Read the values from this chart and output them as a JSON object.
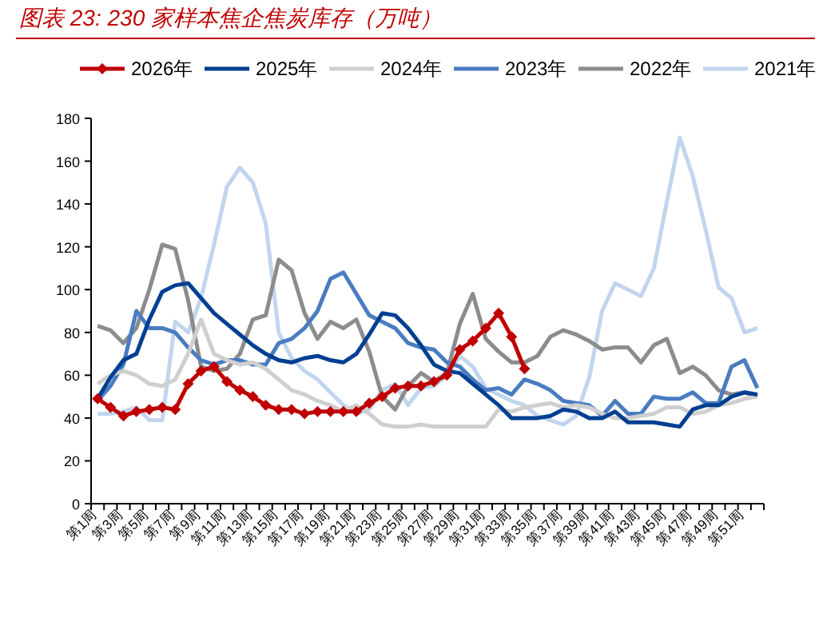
{
  "chart_data": {
    "type": "line",
    "title": "图表 23:  230 家样本焦企焦炭库存（万吨）",
    "legend": "top",
    "ylim": [
      0,
      180
    ],
    "yticks": [
      0,
      20,
      40,
      60,
      80,
      100,
      120,
      140,
      160,
      180
    ],
    "categories": [
      "第1周",
      null,
      "第3周",
      null,
      "第5周",
      null,
      "第7周",
      null,
      "第9周",
      null,
      "第11周",
      null,
      "第13周",
      null,
      "第15周",
      null,
      "第17周",
      null,
      "第19周",
      null,
      "第21周",
      null,
      "第23周",
      null,
      "第25周",
      null,
      "第27周",
      null,
      "第29周",
      null,
      "第31周",
      null,
      "第33周",
      null,
      "第35周",
      null,
      "第37周",
      null,
      "第39周",
      null,
      "第41周",
      null,
      "第43周",
      null,
      "第45周",
      null,
      "第47周",
      null,
      "第49周",
      null,
      "第51周",
      null
    ],
    "series": [
      {
        "name": "2026年",
        "color": "#c00000",
        "marker": "diamond",
        "values": [
          49,
          45,
          41,
          43,
          44,
          45,
          44,
          56,
          62,
          64,
          57,
          53,
          50,
          46,
          44,
          44,
          42,
          43,
          43,
          43,
          43,
          47,
          50,
          54,
          55,
          55,
          57,
          60,
          72,
          76,
          82,
          89,
          78,
          63,
          null,
          null,
          null,
          null,
          null,
          null,
          null,
          null,
          null,
          null,
          null,
          null,
          null,
          null,
          null,
          null,
          null,
          null
        ]
      },
      {
        "name": "2025年",
        "color": "#003f91",
        "values": [
          49,
          59,
          67,
          70,
          86,
          99,
          102,
          103,
          96,
          89,
          84,
          79,
          74,
          70,
          67,
          66,
          68,
          69,
          67,
          66,
          70,
          79,
          89,
          88,
          82,
          74,
          65,
          62,
          61,
          56,
          51,
          46,
          40,
          40,
          40,
          41,
          44,
          43,
          40,
          40,
          43,
          38,
          38,
          38,
          37,
          36,
          44,
          46,
          46,
          50,
          52,
          51
        ]
      },
      {
        "name": "2024年",
        "color": "#cfcfcf",
        "values": [
          56,
          60,
          62,
          60,
          56,
          55,
          58,
          70,
          86,
          70,
          67,
          65,
          66,
          63,
          58,
          53,
          51,
          48,
          46,
          43,
          46,
          42,
          37,
          36,
          36,
          37,
          36,
          36,
          36,
          36,
          36,
          44,
          43,
          45,
          46,
          47,
          45,
          46,
          45,
          42,
          40,
          40,
          41,
          42,
          45,
          45,
          42,
          43,
          46,
          47,
          49,
          50
        ]
      },
      {
        "name": "2023年",
        "color": "#4a7cc0",
        "values": [
          48,
          55,
          65,
          90,
          82,
          82,
          80,
          73,
          67,
          65,
          67,
          67,
          65,
          65,
          75,
          77,
          82,
          90,
          105,
          108,
          98,
          88,
          85,
          82,
          75,
          73,
          72,
          66,
          64,
          58,
          53,
          54,
          51,
          58,
          56,
          53,
          48,
          47,
          46,
          41,
          48,
          42,
          42,
          50,
          49,
          49,
          52,
          47,
          47,
          64,
          67,
          54
        ]
      },
      {
        "name": "2022年",
        "color": "#8c8c8c",
        "values": [
          83,
          81,
          75,
          82,
          100,
          121,
          119,
          95,
          64,
          62,
          63,
          70,
          86,
          88,
          114,
          109,
          89,
          77,
          85,
          82,
          86,
          71,
          50,
          44,
          55,
          61,
          57,
          61,
          84,
          98,
          77,
          71,
          66,
          66,
          69,
          78,
          81,
          79,
          76,
          72,
          73,
          73,
          66,
          74,
          77,
          61,
          64,
          60,
          53,
          51,
          52,
          50
        ]
      },
      {
        "name": "2021年",
        "color": "#c2d5ee",
        "values": [
          42,
          42,
          43,
          45,
          39,
          39,
          85,
          80,
          96,
          121,
          148,
          157,
          150,
          131,
          80,
          68,
          62,
          58,
          52,
          46,
          42,
          44,
          53,
          56,
          46,
          54,
          55,
          60,
          69,
          64,
          54,
          51,
          48,
          46,
          41,
          39,
          37,
          41,
          59,
          90,
          103,
          100,
          97,
          110,
          141,
          171,
          153,
          128,
          101,
          96,
          80,
          82
        ]
      }
    ]
  }
}
